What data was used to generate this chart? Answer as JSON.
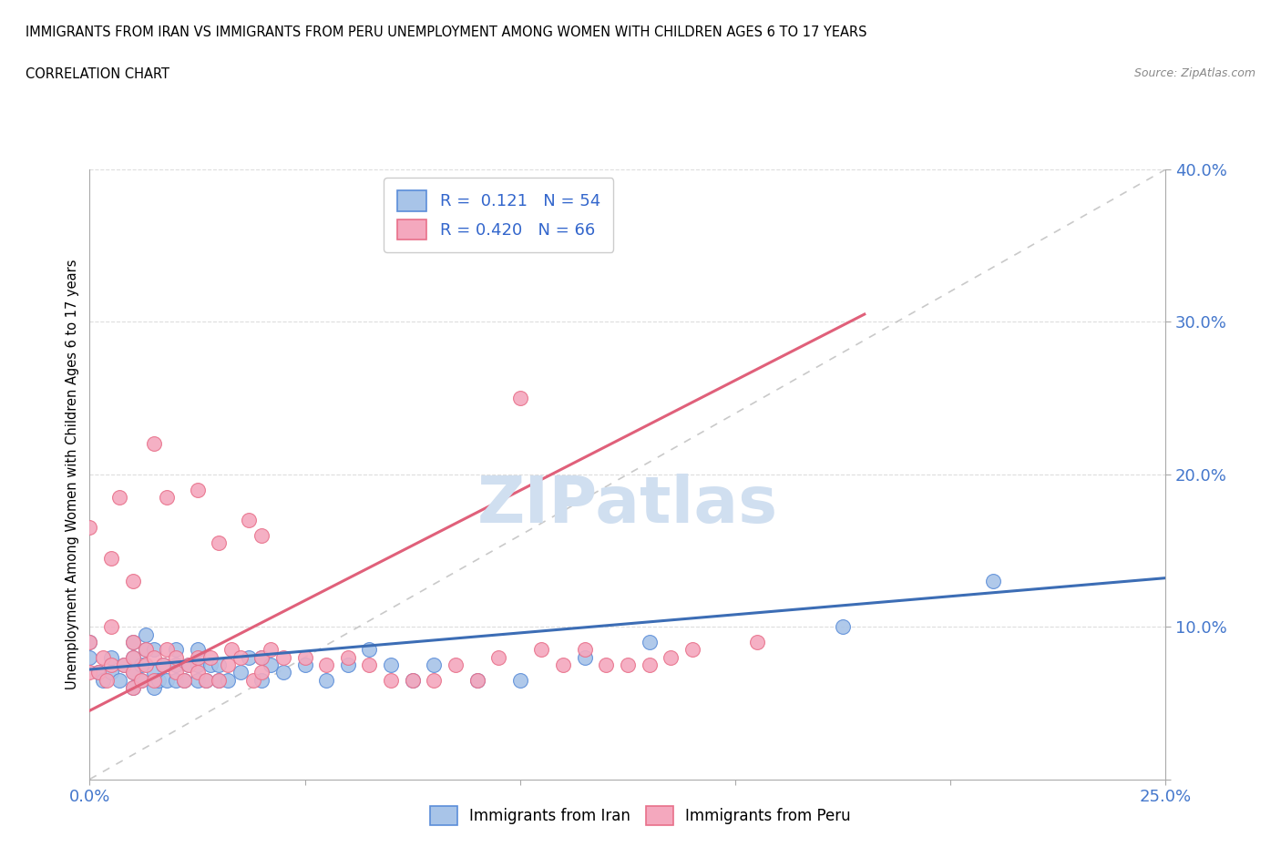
{
  "title_line1": "IMMIGRANTS FROM IRAN VS IMMIGRANTS FROM PERU UNEMPLOYMENT AMONG WOMEN WITH CHILDREN AGES 6 TO 17 YEARS",
  "title_line2": "CORRELATION CHART",
  "source": "Source: ZipAtlas.com",
  "ylabel": "Unemployment Among Women with Children Ages 6 to 17 years",
  "xlim": [
    0.0,
    0.25
  ],
  "ylim": [
    0.0,
    0.4
  ],
  "xticks": [
    0.0,
    0.05,
    0.1,
    0.15,
    0.2,
    0.25
  ],
  "xticklabels": [
    "0.0%",
    "",
    "",
    "",
    "",
    "25.0%"
  ],
  "yticks": [
    0.0,
    0.1,
    0.2,
    0.3,
    0.4
  ],
  "yticklabels": [
    "",
    "10.0%",
    "20.0%",
    "30.0%",
    "40.0%"
  ],
  "iran_R": 0.121,
  "iran_N": 54,
  "peru_R": 0.42,
  "peru_N": 66,
  "iran_color": "#A8C4E8",
  "peru_color": "#F4A8BE",
  "iran_edge_color": "#5B8DD9",
  "peru_edge_color": "#E8708A",
  "iran_line_color": "#3C6DB5",
  "peru_line_color": "#E0607A",
  "ref_line_color": "#C0C0C0",
  "watermark_color": "#D0DFF0",
  "iran_line_x": [
    0.0,
    0.25
  ],
  "iran_line_y": [
    0.072,
    0.132
  ],
  "peru_line_x": [
    0.0,
    0.18
  ],
  "peru_line_y": [
    0.045,
    0.305
  ],
  "iran_scatter_x": [
    0.0,
    0.0,
    0.002,
    0.003,
    0.005,
    0.005,
    0.007,
    0.008,
    0.01,
    0.01,
    0.01,
    0.01,
    0.012,
    0.012,
    0.013,
    0.013,
    0.015,
    0.015,
    0.015,
    0.016,
    0.017,
    0.018,
    0.02,
    0.02,
    0.02,
    0.022,
    0.023,
    0.025,
    0.025,
    0.025,
    0.027,
    0.028,
    0.03,
    0.03,
    0.032,
    0.035,
    0.037,
    0.04,
    0.04,
    0.042,
    0.045,
    0.05,
    0.055,
    0.06,
    0.065,
    0.07,
    0.075,
    0.08,
    0.09,
    0.1,
    0.115,
    0.13,
    0.175,
    0.21
  ],
  "iran_scatter_y": [
    0.08,
    0.09,
    0.07,
    0.065,
    0.07,
    0.08,
    0.065,
    0.075,
    0.06,
    0.07,
    0.08,
    0.09,
    0.065,
    0.075,
    0.085,
    0.095,
    0.06,
    0.07,
    0.085,
    0.065,
    0.075,
    0.065,
    0.065,
    0.075,
    0.085,
    0.065,
    0.075,
    0.065,
    0.075,
    0.085,
    0.065,
    0.075,
    0.065,
    0.075,
    0.065,
    0.07,
    0.08,
    0.065,
    0.08,
    0.075,
    0.07,
    0.075,
    0.065,
    0.075,
    0.085,
    0.075,
    0.065,
    0.075,
    0.065,
    0.065,
    0.08,
    0.09,
    0.1,
    0.13
  ],
  "peru_scatter_x": [
    0.0,
    0.0,
    0.0,
    0.002,
    0.003,
    0.004,
    0.005,
    0.005,
    0.005,
    0.007,
    0.008,
    0.01,
    0.01,
    0.01,
    0.01,
    0.01,
    0.012,
    0.013,
    0.013,
    0.015,
    0.015,
    0.015,
    0.017,
    0.018,
    0.018,
    0.02,
    0.02,
    0.022,
    0.023,
    0.025,
    0.025,
    0.025,
    0.027,
    0.028,
    0.03,
    0.03,
    0.032,
    0.033,
    0.035,
    0.037,
    0.038,
    0.04,
    0.04,
    0.04,
    0.042,
    0.045,
    0.05,
    0.055,
    0.06,
    0.065,
    0.07,
    0.075,
    0.08,
    0.085,
    0.09,
    0.095,
    0.1,
    0.105,
    0.11,
    0.115,
    0.12,
    0.125,
    0.13,
    0.135,
    0.14,
    0.155
  ],
  "peru_scatter_y": [
    0.07,
    0.09,
    0.165,
    0.07,
    0.08,
    0.065,
    0.075,
    0.1,
    0.145,
    0.185,
    0.075,
    0.06,
    0.07,
    0.08,
    0.09,
    0.13,
    0.065,
    0.075,
    0.085,
    0.065,
    0.08,
    0.22,
    0.075,
    0.085,
    0.185,
    0.07,
    0.08,
    0.065,
    0.075,
    0.07,
    0.08,
    0.19,
    0.065,
    0.08,
    0.065,
    0.155,
    0.075,
    0.085,
    0.08,
    0.17,
    0.065,
    0.07,
    0.08,
    0.16,
    0.085,
    0.08,
    0.08,
    0.075,
    0.08,
    0.075,
    0.065,
    0.065,
    0.065,
    0.075,
    0.065,
    0.08,
    0.25,
    0.085,
    0.075,
    0.085,
    0.075,
    0.075,
    0.075,
    0.08,
    0.085,
    0.09
  ]
}
